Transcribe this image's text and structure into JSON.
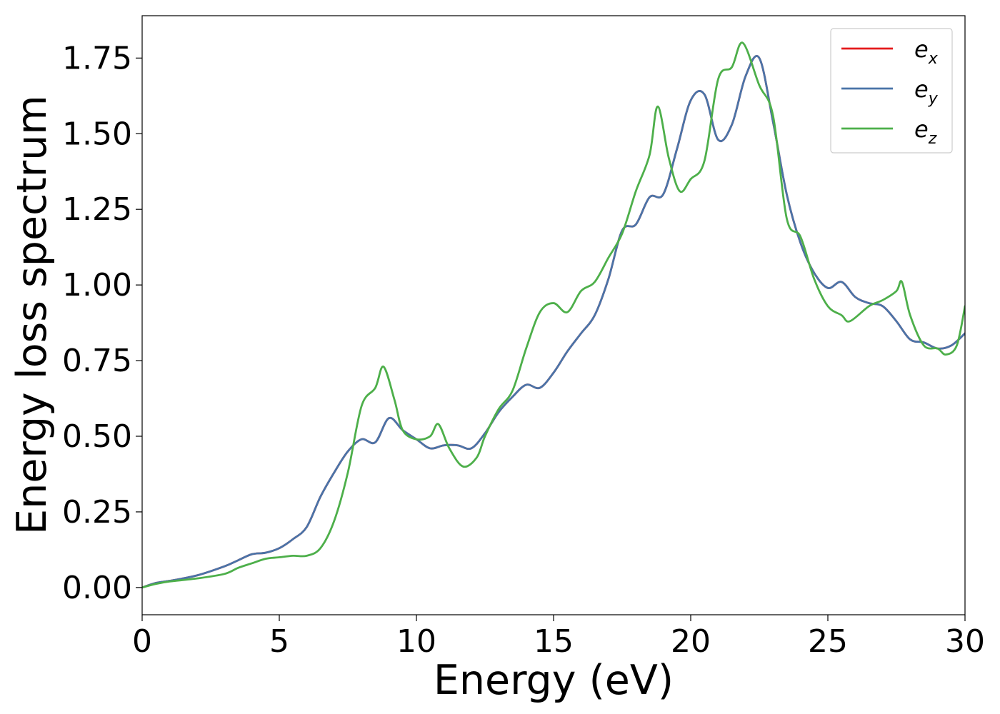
{
  "chart_data": {
    "type": "line",
    "xlabel": "Energy (eV)",
    "ylabel": "Energy loss spectrum",
    "xlim": [
      0,
      30
    ],
    "ylim": [
      -0.09,
      1.89
    ],
    "xticks": [
      0,
      5,
      10,
      15,
      20,
      25,
      30
    ],
    "xtick_labels": [
      "0",
      "5",
      "10",
      "15",
      "20",
      "25",
      "30"
    ],
    "yticks": [
      0,
      0.25,
      0.5,
      0.75,
      1.0,
      1.25,
      1.5,
      1.75
    ],
    "ytick_labels": [
      "0.00",
      "0.25",
      "0.50",
      "0.75",
      "1.00",
      "1.25",
      "1.50",
      "1.75"
    ],
    "grid": false,
    "legend_position": "top-right",
    "series": [
      {
        "name": "e_x",
        "label_base": "e",
        "label_sub": "x",
        "color": "#e41a1c",
        "x": [
          0,
          0.5,
          1,
          2,
          3,
          3.5,
          4,
          4.5,
          5,
          5.5,
          6,
          6.5,
          7,
          7.5,
          8,
          8.5,
          9,
          9.5,
          10,
          10.5,
          11,
          11.5,
          12,
          12.5,
          13,
          13.5,
          14,
          14.5,
          15,
          15.5,
          16,
          16.5,
          17,
          17.5,
          18,
          18.5,
          19,
          19.5,
          20,
          20.5,
          21,
          21.5,
          22,
          22.5,
          23,
          23.5,
          24,
          24.5,
          25,
          25.5,
          26,
          26.5,
          27,
          27.5,
          28,
          28.5,
          29,
          29.5,
          30
        ],
        "y": [
          0.0,
          0.015,
          0.022,
          0.04,
          0.07,
          0.09,
          0.11,
          0.115,
          0.13,
          0.16,
          0.2,
          0.3,
          0.38,
          0.45,
          0.49,
          0.48,
          0.56,
          0.52,
          0.49,
          0.46,
          0.47,
          0.47,
          0.46,
          0.51,
          0.58,
          0.63,
          0.67,
          0.66,
          0.71,
          0.78,
          0.84,
          0.9,
          1.02,
          1.18,
          1.2,
          1.29,
          1.3,
          1.45,
          1.61,
          1.63,
          1.48,
          1.53,
          1.69,
          1.75,
          1.54,
          1.3,
          1.14,
          1.04,
          0.99,
          1.01,
          0.96,
          0.94,
          0.93,
          0.88,
          0.82,
          0.81,
          0.79,
          0.8,
          0.84
        ]
      },
      {
        "name": "e_y",
        "label_base": "e",
        "label_sub": "y",
        "color": "#4a74a8",
        "x": [
          0,
          0.5,
          1,
          2,
          3,
          3.5,
          4,
          4.5,
          5,
          5.5,
          6,
          6.5,
          7,
          7.5,
          8,
          8.5,
          9,
          9.5,
          10,
          10.5,
          11,
          11.5,
          12,
          12.5,
          13,
          13.5,
          14,
          14.5,
          15,
          15.5,
          16,
          16.5,
          17,
          17.5,
          18,
          18.5,
          19,
          19.5,
          20,
          20.5,
          21,
          21.5,
          22,
          22.5,
          23,
          23.5,
          24,
          24.5,
          25,
          25.5,
          26,
          26.5,
          27,
          27.5,
          28,
          28.5,
          29,
          29.5,
          30
        ],
        "y": [
          0.0,
          0.015,
          0.022,
          0.04,
          0.07,
          0.09,
          0.11,
          0.115,
          0.13,
          0.16,
          0.2,
          0.3,
          0.38,
          0.45,
          0.49,
          0.48,
          0.56,
          0.52,
          0.49,
          0.46,
          0.47,
          0.47,
          0.46,
          0.51,
          0.58,
          0.63,
          0.67,
          0.66,
          0.71,
          0.78,
          0.84,
          0.9,
          1.02,
          1.18,
          1.2,
          1.29,
          1.3,
          1.45,
          1.61,
          1.63,
          1.48,
          1.53,
          1.69,
          1.75,
          1.54,
          1.3,
          1.14,
          1.04,
          0.99,
          1.01,
          0.96,
          0.94,
          0.93,
          0.88,
          0.82,
          0.81,
          0.79,
          0.8,
          0.84
        ]
      },
      {
        "name": "e_z",
        "label_base": "e",
        "label_sub": "z",
        "color": "#4daf4a",
        "x": [
          0,
          0.5,
          1,
          2,
          3,
          3.5,
          4,
          4.5,
          5,
          5.5,
          6,
          6.5,
          7,
          7.5,
          8,
          8.5,
          8.8,
          9.2,
          9.5,
          10,
          10.5,
          10.8,
          11.2,
          11.7,
          12.2,
          12.5,
          13,
          13.5,
          14,
          14.5,
          15,
          15.5,
          16,
          16.5,
          17,
          17.5,
          18,
          18.5,
          18.8,
          19.2,
          19.6,
          20,
          20.5,
          21,
          21.5,
          21.9,
          22.5,
          23,
          23.5,
          24,
          24.5,
          25,
          25.5,
          25.8,
          26.5,
          27,
          27.5,
          27.7,
          28,
          28.5,
          29,
          29.3,
          29.7,
          30
        ],
        "y": [
          0.0,
          0.012,
          0.02,
          0.03,
          0.045,
          0.065,
          0.08,
          0.095,
          0.1,
          0.105,
          0.105,
          0.13,
          0.22,
          0.38,
          0.6,
          0.66,
          0.73,
          0.62,
          0.52,
          0.49,
          0.5,
          0.54,
          0.46,
          0.4,
          0.43,
          0.5,
          0.59,
          0.65,
          0.79,
          0.91,
          0.94,
          0.91,
          0.98,
          1.01,
          1.09,
          1.17,
          1.31,
          1.43,
          1.59,
          1.42,
          1.31,
          1.35,
          1.41,
          1.68,
          1.72,
          1.8,
          1.66,
          1.56,
          1.22,
          1.16,
          1.02,
          0.93,
          0.9,
          0.88,
          0.93,
          0.95,
          0.98,
          1.01,
          0.9,
          0.8,
          0.79,
          0.77,
          0.8,
          0.93
        ]
      }
    ]
  }
}
